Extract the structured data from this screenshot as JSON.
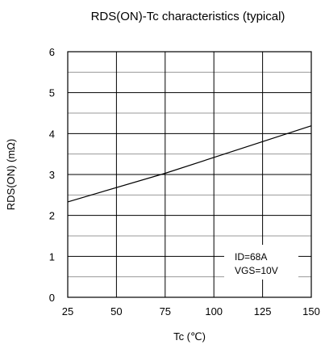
{
  "chart_data": {
    "type": "line",
    "title": "RDS(ON)-Tc characteristics (typical)",
    "xlabel": "Tc (℃)",
    "ylabel": "RDS(ON) (mΩ)",
    "xlim": [
      25,
      150
    ],
    "ylim": [
      0,
      6
    ],
    "x_ticks": [
      25,
      50,
      75,
      100,
      125,
      150
    ],
    "x_tick_labels": [
      "25",
      "50",
      "75",
      "100",
      "125",
      "150"
    ],
    "y_ticks": [
      0,
      1,
      2,
      3,
      4,
      5,
      6
    ],
    "y_tick_labels": [
      "0",
      "1",
      "2",
      "3",
      "4",
      "5",
      "6"
    ],
    "grid": true,
    "minor_y_gridlines": [
      0.5,
      1.5,
      2.5,
      3.5,
      4.5,
      5.5
    ],
    "series": [
      {
        "x": [
          25,
          75,
          150
        ],
        "y": [
          2.33,
          3.03,
          4.19
        ]
      }
    ],
    "annotation": {
      "lines": [
        "ID=68A",
        "VGS=10V"
      ],
      "placement": "bottom-right"
    }
  }
}
